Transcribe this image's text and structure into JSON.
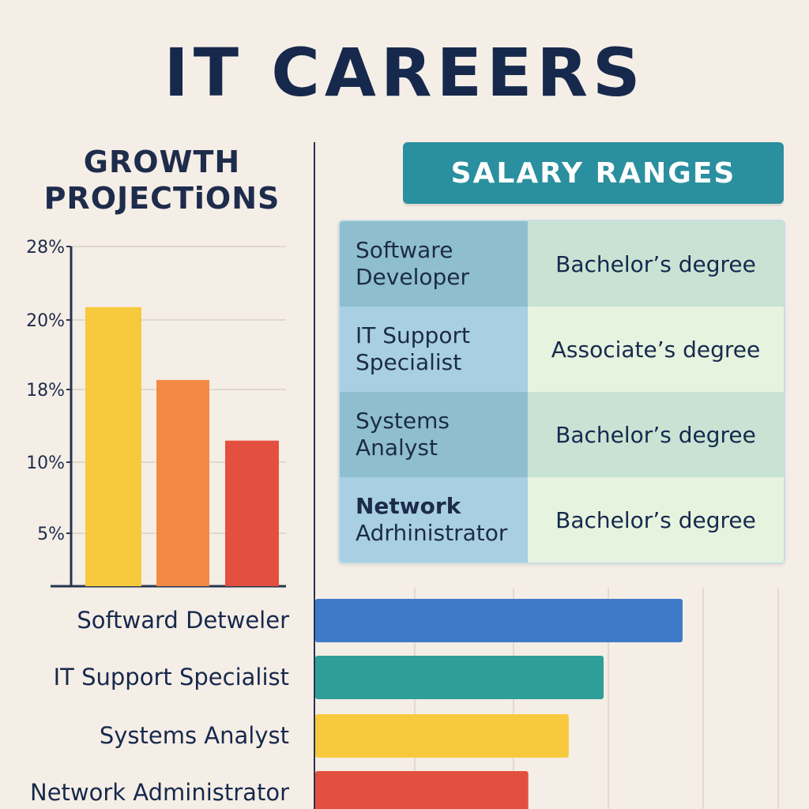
{
  "title": "IT CAREERS",
  "growth": {
    "title_line1": "GROWTH",
    "title_line2": "PROJECTiONS",
    "tick_labels": [
      "28%",
      "20%",
      "18%",
      "10%",
      "5%"
    ],
    "chart_data": {
      "type": "bar",
      "values": [
        23,
        17,
        12
      ],
      "colors": [
        "#f7c93c",
        "#f28a45",
        "#e4503f"
      ],
      "ylim": [
        0,
        28
      ],
      "grid": true
    }
  },
  "salary": {
    "title": "SALARY RANGES",
    "rows": [
      {
        "role_line1": "Software",
        "role_line2": "Developer",
        "degree": "Bachelor’s degree"
      },
      {
        "role_line1": "IT Support",
        "role_line2": "Specialist",
        "degree": "Associate’s degree"
      },
      {
        "role_line1": "Systems",
        "role_line2": "Analyst",
        "degree": "Bachelor’s degree"
      },
      {
        "role_line1": "Network",
        "role_line2": "Adrhinistrator",
        "degree": "Bachelor’s degree"
      }
    ]
  },
  "chart_data": {
    "type": "bar",
    "orientation": "horizontal",
    "categories": [
      "Softward Detweler",
      "IT Support Specialist",
      "Systems Analyst",
      "Network Administrator"
    ],
    "values": [
      100,
      78.5,
      69,
      58
    ],
    "colors": [
      "#3f7ac8",
      "#2f9e98",
      "#f7c93c",
      "#e4503f"
    ],
    "xlim": [
      0,
      125
    ],
    "grid": true
  }
}
